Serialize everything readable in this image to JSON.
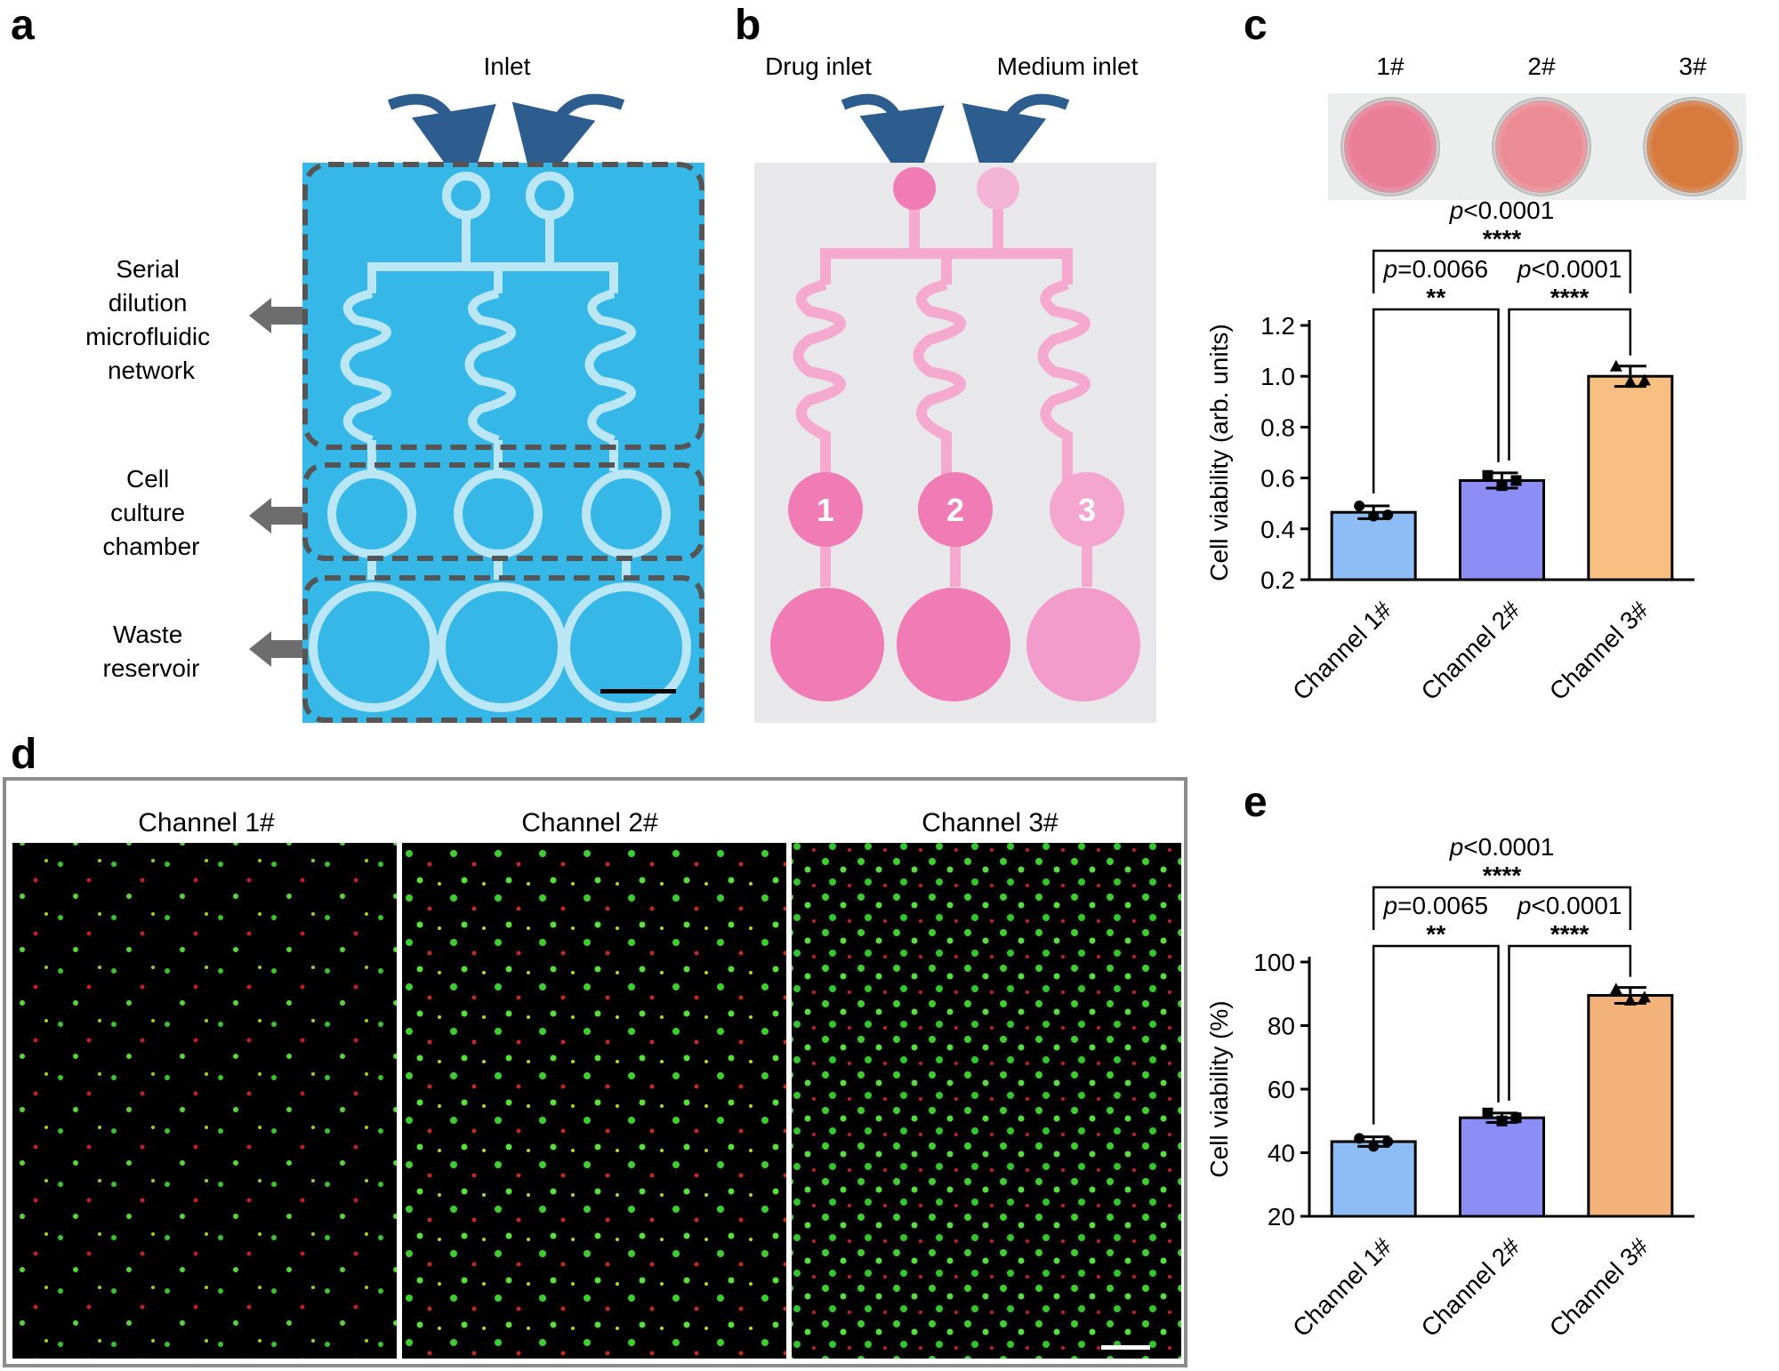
{
  "panels": {
    "a": {
      "letter": "a",
      "inlet": "Inlet",
      "labels": [
        {
          "lines": [
            "Serial",
            "dilution",
            "microfluidic",
            "network"
          ]
        },
        {
          "lines": [
            "Cell",
            "culture",
            "chamber"
          ]
        },
        {
          "lines": [
            "Waste",
            "reservoir"
          ]
        }
      ],
      "colors": {
        "background": "#35b8e8",
        "dash": "#555555",
        "arrow": "#6d6d6d",
        "inlet_arrow": "#2d5c8f"
      }
    },
    "b": {
      "letter": "b",
      "drug_inlet": "Drug inlet",
      "medium_inlet": "Medium inlet",
      "chamber_numbers": [
        "1",
        "2",
        "3"
      ],
      "colors": {
        "background": "#e8e8ea",
        "medium": "#f07bb5",
        "channel": "#f5a9cf"
      }
    },
    "c": {
      "letter": "c",
      "wells": [
        "1#",
        "2#",
        "3#"
      ],
      "well_colors": [
        "#e97f98",
        "#ec8d95",
        "#d67a3e"
      ]
    },
    "d": {
      "letter": "d",
      "titles": [
        "Channel 1#",
        "Channel 2#",
        "Channel 3#"
      ]
    },
    "e": {
      "letter": "e"
    }
  },
  "chart_data": [
    {
      "panel": "c",
      "type": "bar",
      "categories": [
        "Channel 1#",
        "Channel 2#",
        "Channel 3#"
      ],
      "values": [
        0.465,
        0.59,
        1.0
      ],
      "errors": [
        0.025,
        0.03,
        0.04
      ],
      "points": [
        [
          0.49,
          0.45,
          0.455
        ],
        [
          0.61,
          0.57,
          0.59
        ],
        [
          1.04,
          0.98,
          0.985
        ]
      ],
      "bar_colors": [
        "#8dbdf4",
        "#8d8df6",
        "#f8bf82"
      ],
      "ylabel": "Cell viability (arb. units)",
      "ylim": [
        0.2,
        1.2
      ],
      "yticks": [
        "0.2",
        "0.4",
        "0.6",
        "0.8",
        "1.0",
        "1.2"
      ],
      "comparisons": [
        {
          "from": 0,
          "to": 1,
          "p": "=0.0066",
          "stars": "**"
        },
        {
          "from": 1,
          "to": 2,
          "p": "<0.0001",
          "stars": "****"
        },
        {
          "from": 0,
          "to": 2,
          "p": "<0.0001",
          "stars": "****"
        }
      ]
    },
    {
      "panel": "e",
      "type": "bar",
      "categories": [
        "Channel 1#",
        "Channel 2#",
        "Channel 3#"
      ],
      "values": [
        43.5,
        51,
        89.5
      ],
      "errors": [
        1.5,
        1.5,
        2.5
      ],
      "points": [
        [
          44.5,
          42,
          43.5
        ],
        [
          52.5,
          50,
          51
        ],
        [
          91.5,
          88,
          89
        ]
      ],
      "bar_colors": [
        "#8dbdf4",
        "#8d8df6",
        "#f2b27a"
      ],
      "ylabel": "Cell viability (%)",
      "ylim": [
        20,
        100
      ],
      "yticks": [
        "20",
        "40",
        "60",
        "80",
        "100"
      ],
      "comparisons": [
        {
          "from": 0,
          "to": 1,
          "p": "=0.0065",
          "stars": "**"
        },
        {
          "from": 1,
          "to": 2,
          "p": "<0.0001",
          "stars": "****"
        },
        {
          "from": 0,
          "to": 2,
          "p": "<0.0001",
          "stars": "****"
        }
      ]
    }
  ]
}
